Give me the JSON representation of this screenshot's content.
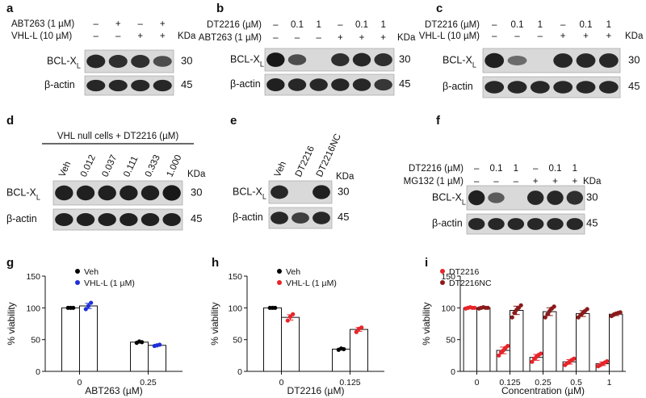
{
  "blots": [
    {
      "id": "a",
      "label": "a",
      "lanes": 4,
      "conditions": [
        {
          "name": "ABT263 (1 µM)",
          "marks": [
            "–",
            "+",
            "–",
            "+"
          ]
        },
        {
          "name": "VHL-L (10 µM)",
          "marks": [
            "–",
            "–",
            "+",
            "+"
          ]
        }
      ],
      "kda": "KDa",
      "bands": [
        {
          "label": "BCL-X",
          "sub": "L",
          "mw": "30",
          "intensity": [
            0.85,
            0.8,
            0.8,
            0.6
          ]
        },
        {
          "label": "β-actin",
          "sub": "",
          "mw": "45",
          "intensity": [
            0.85,
            0.85,
            0.85,
            0.85
          ]
        }
      ]
    },
    {
      "id": "b",
      "label": "b",
      "lanes": 6,
      "conditions": [
        {
          "name": "DT2216 (µM)",
          "marks": [
            "–",
            "0.1",
            "1",
            "–",
            "0.1",
            "1"
          ]
        },
        {
          "name": "ABT263 (1 µM)",
          "marks": [
            "–",
            "–",
            "–",
            "+",
            "+",
            "+"
          ]
        }
      ],
      "kda": "KDa",
      "bands": [
        {
          "label": "BCL-X",
          "sub": "L",
          "mw": "30",
          "intensity": [
            0.95,
            0.6,
            0.0,
            0.8,
            0.85,
            0.8
          ]
        },
        {
          "label": "β-actin",
          "sub": "",
          "mw": "45",
          "intensity": [
            0.9,
            0.85,
            0.85,
            0.85,
            0.85,
            0.75
          ]
        }
      ]
    },
    {
      "id": "c",
      "label": "c",
      "lanes": 6,
      "conditions": [
        {
          "name": "DT2216 (µM)",
          "marks": [
            "–",
            "0.1",
            "1",
            "–",
            "0.1",
            "1"
          ]
        },
        {
          "name": "VHL-L (10 µM)",
          "marks": [
            "–",
            "–",
            "–",
            "+",
            "+",
            "+"
          ]
        }
      ],
      "kda": "KDa",
      "bands": [
        {
          "label": "BCL-X",
          "sub": "L",
          "mw": "30",
          "intensity": [
            0.9,
            0.4,
            0.0,
            0.85,
            0.85,
            0.85
          ]
        },
        {
          "label": "β-actin",
          "sub": "",
          "mw": "45",
          "intensity": [
            0.85,
            0.85,
            0.85,
            0.85,
            0.85,
            0.85
          ]
        }
      ]
    },
    {
      "id": "d",
      "label": "d",
      "lanes": 6,
      "header": "VHL  null cells + DT2216 (µM)",
      "lane_labels": [
        "Veh",
        "0.012",
        "0.037",
        "0.111",
        "0.333",
        "1.000"
      ],
      "kda": "KDa",
      "bands": [
        {
          "label": "BCL-X",
          "sub": "L",
          "mw": "30",
          "intensity": [
            0.9,
            0.9,
            0.9,
            0.9,
            0.9,
            0.95
          ]
        },
        {
          "label": "β-actin",
          "sub": "",
          "mw": "45",
          "intensity": [
            0.9,
            0.9,
            0.9,
            0.9,
            0.9,
            0.9
          ]
        }
      ]
    },
    {
      "id": "e",
      "label": "e",
      "lanes": 3,
      "lane_labels": [
        "Veh",
        "DT2216",
        "DT2216NC"
      ],
      "kda": "KDa",
      "bands": [
        {
          "label": "BCL-X",
          "sub": "L",
          "mw": "30",
          "intensity": [
            0.85,
            0.0,
            0.9
          ]
        },
        {
          "label": "β-actin",
          "sub": "",
          "mw": "45",
          "intensity": [
            0.85,
            0.7,
            0.85
          ]
        }
      ]
    },
    {
      "id": "f",
      "label": "f",
      "lanes": 6,
      "conditions": [
        {
          "name": "DT2216 (µM)",
          "marks": [
            "–",
            "0.1",
            "1",
            "–",
            "0.1",
            "1"
          ]
        },
        {
          "name": "MG132 (1 µM)",
          "marks": [
            "–",
            "–",
            "–",
            "+",
            "+",
            "+"
          ]
        }
      ],
      "kda": "KDa",
      "bands": [
        {
          "label": "BCL-X",
          "sub": "L",
          "mw": "30",
          "intensity": [
            0.9,
            0.5,
            0.0,
            0.85,
            0.85,
            0.8
          ]
        },
        {
          "label": "β-actin",
          "sub": "",
          "mw": "45",
          "intensity": [
            0.85,
            0.85,
            0.85,
            0.85,
            0.85,
            0.85
          ]
        }
      ]
    }
  ],
  "chart_data": [
    {
      "id": "g",
      "label": "g",
      "type": "bar",
      "categories": [
        "0",
        "0.25"
      ],
      "xlabel": "ABT263 (µM)",
      "ylabel": "% viability",
      "ylim": [
        0,
        150
      ],
      "yticks": [
        0,
        50,
        100,
        150
      ],
      "legend_position": "top-left",
      "series": [
        {
          "name": "Veh",
          "color": "#000000",
          "values": [
            100,
            46
          ],
          "points": [
            [
              100,
              100,
              100
            ],
            [
              45,
              47,
              46
            ]
          ]
        },
        {
          "name": "VHL-L (1 µM)",
          "color": "#1f2fd8",
          "values": [
            103,
            41
          ],
          "points": [
            [
              98,
              103,
              108
            ],
            [
              40,
              41,
              42
            ]
          ]
        }
      ]
    },
    {
      "id": "h",
      "label": "h",
      "type": "bar",
      "categories": [
        "0",
        "0.125"
      ],
      "xlabel": "DT2216 (µM)",
      "ylabel": "% viability",
      "ylim": [
        0,
        150
      ],
      "yticks": [
        0,
        50,
        100,
        150
      ],
      "legend_position": "top-left",
      "series": [
        {
          "name": "Veh",
          "color": "#000000",
          "values": [
            100,
            35
          ],
          "points": [
            [
              100,
              100,
              100
            ],
            [
              34,
              36,
              35
            ]
          ]
        },
        {
          "name": "VHL-L (1 µM)",
          "color": "#e8242a",
          "values": [
            85,
            66
          ],
          "points": [
            [
              80,
              86,
              90
            ],
            [
              62,
              67,
              69
            ]
          ]
        }
      ]
    },
    {
      "id": "i",
      "label": "i",
      "type": "bar",
      "categories": [
        "0",
        "0.125",
        "0.25",
        "0.5",
        "1"
      ],
      "xlabel": "Concentration (µM)",
      "ylabel": "% viability",
      "ylim": [
        0,
        150
      ],
      "yticks": [
        0,
        50,
        100,
        150
      ],
      "legend_position": "top-left",
      "series": [
        {
          "name": "DT2216",
          "color": "#e8242a",
          "values": [
            100,
            33,
            22,
            15,
            12
          ],
          "points": [
            [
              99,
              100,
              101,
              100,
              100
            ],
            [
              25,
              30,
              33,
              37,
              40
            ],
            [
              15,
              20,
              23,
              26,
              28
            ],
            [
              10,
              13,
              15,
              18,
              20
            ],
            [
              8,
              10,
              12,
              14,
              16
            ]
          ]
        },
        {
          "name": "DT2216NC",
          "color": "#8b1a1a",
          "values": [
            100,
            96,
            94,
            91,
            90
          ],
          "points": [
            [
              99,
              100,
              101,
              100,
              100
            ],
            [
              85,
              92,
              97,
              100,
              104
            ],
            [
              85,
              90,
              95,
              99,
              102
            ],
            [
              85,
              89,
              92,
              95,
              98
            ],
            [
              87,
              89,
              91,
              92,
              93
            ]
          ]
        }
      ]
    }
  ]
}
